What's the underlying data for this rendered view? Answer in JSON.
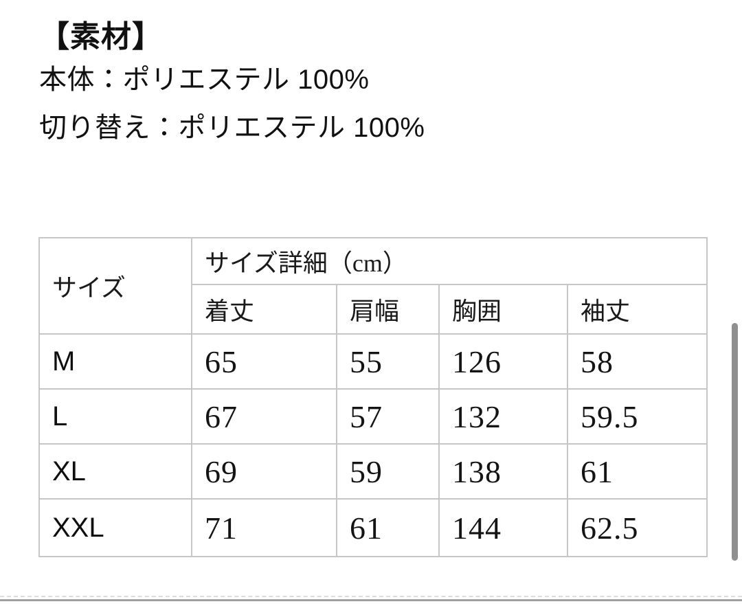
{
  "page": {
    "background": "#ffffff"
  },
  "material_section": {
    "heading": "【素材】",
    "body_line": "本体：ポリエステル 100%",
    "panel_line": "切り替え：ポリエステル 100%"
  },
  "size_table": {
    "corner_header": "サイズ",
    "group_header": "サイズ詳細（cm）",
    "columns": [
      "着丈",
      "肩幅",
      "胸囲",
      "袖丈"
    ],
    "rows": [
      {
        "size": "M",
        "values": [
          "65",
          "55",
          "126",
          "58"
        ]
      },
      {
        "size": "L",
        "values": [
          "67",
          "57",
          "132",
          "59.5"
        ]
      },
      {
        "size": "XL",
        "values": [
          "69",
          "59",
          "138",
          "61"
        ]
      },
      {
        "size": "XXL",
        "values": [
          "71",
          "61",
          "144",
          "62.5"
        ]
      }
    ]
  },
  "scrollbar": {
    "thumb_color": "#8f8f8f"
  },
  "colors": {
    "table_border": "#c6c6c6",
    "text": "#111111",
    "bottom_bar": "#a0a0a0"
  }
}
